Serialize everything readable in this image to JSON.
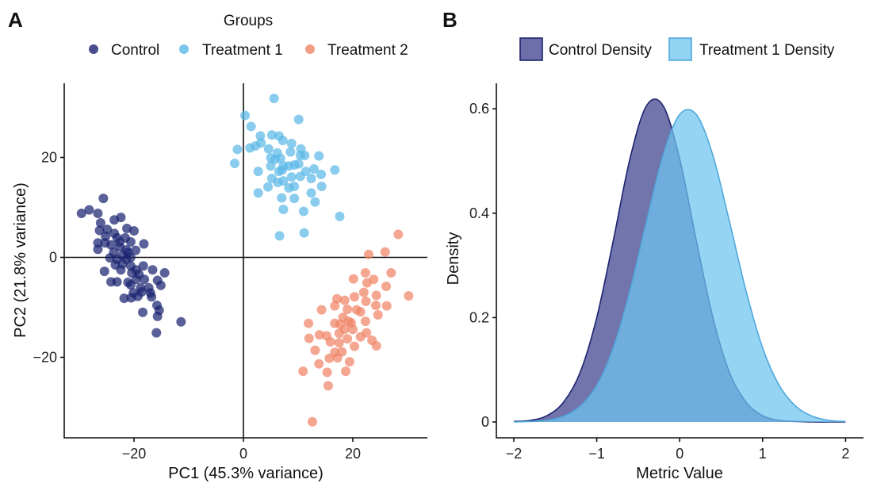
{
  "chart_data": [
    {
      "panel_label": "A",
      "type": "scatter",
      "xlabel": "PC1 (45.3% variance)",
      "ylabel": "PC2 (21.8% variance)",
      "xlim": [
        -32.8,
        33.6
      ],
      "ylim": [
        -36,
        35
      ],
      "xticks": [
        -20,
        0,
        20
      ],
      "yticks": [
        -20,
        0,
        20
      ],
      "xtick_labels": [
        "−20",
        "0",
        "20"
      ],
      "ytick_labels": [
        "−20",
        "0",
        "20"
      ],
      "reference_lines": {
        "x": 0,
        "y": 0
      },
      "grid": false,
      "legend": {
        "title": "Groups",
        "placement": "top"
      },
      "series": [
        {
          "name": "Control",
          "color": "#1b2370",
          "points": [
            [
              -25.6,
              11.8
            ],
            [
              -29.6,
              8.8
            ],
            [
              -28.2,
              9.5
            ],
            [
              -26.6,
              8.8
            ],
            [
              -26.1,
              6.9
            ],
            [
              -23.6,
              7.5
            ],
            [
              -22.4,
              8.0
            ],
            [
              -26.3,
              5.4
            ],
            [
              -24.9,
              5.6
            ],
            [
              -23.6,
              4.8
            ],
            [
              -21.3,
              5.8
            ],
            [
              -20.0,
              5.3
            ],
            [
              -25.2,
              4.2
            ],
            [
              -23.1,
              3.9
            ],
            [
              -21.6,
              3.9
            ],
            [
              -20.6,
              3.1
            ],
            [
              -26.6,
              2.9
            ],
            [
              -25.3,
              2.9
            ],
            [
              -24.2,
              2.5
            ],
            [
              -22.6,
              2.1
            ],
            [
              -21.4,
              1.5
            ],
            [
              -19.7,
              1.4
            ],
            [
              -18.2,
              2.7
            ],
            [
              -26.6,
              1.6
            ],
            [
              -23.7,
              1.0
            ],
            [
              -22.1,
              0.4
            ],
            [
              -20.6,
              0
            ],
            [
              -24.4,
              -0.1
            ],
            [
              -23.1,
              -0.4
            ],
            [
              -21.4,
              -0.4
            ],
            [
              -23.4,
              -1.5
            ],
            [
              -22.1,
              -1.3
            ],
            [
              -20.6,
              -1.7
            ],
            [
              -19.6,
              -2.5
            ],
            [
              -18.3,
              -1.7
            ],
            [
              -25.4,
              -2.8
            ],
            [
              -22.4,
              -2.5
            ],
            [
              -20.4,
              -3.1
            ],
            [
              -19.1,
              -3.4
            ],
            [
              -16.6,
              -2.5
            ],
            [
              -14.4,
              -3.1
            ],
            [
              -21.1,
              -5.0
            ],
            [
              -19.6,
              -4.4
            ],
            [
              -18.1,
              -4.4
            ],
            [
              -24.2,
              -4.9
            ],
            [
              -23.1,
              -4.9
            ],
            [
              -20.6,
              -5.5
            ],
            [
              -18.8,
              -6.1
            ],
            [
              -17.3,
              -6.1
            ],
            [
              -15.7,
              -4.6
            ],
            [
              -15.1,
              -5.6
            ],
            [
              -20.1,
              -7.1
            ],
            [
              -18.6,
              -6.9
            ],
            [
              -17.0,
              -7.1
            ],
            [
              -21.8,
              -8.2
            ],
            [
              -20.5,
              -8.1
            ],
            [
              -19.3,
              -7.8
            ],
            [
              -16.8,
              -7.9
            ],
            [
              -15.8,
              -9.6
            ],
            [
              -15.4,
              -10.6
            ],
            [
              -18.4,
              -11.0
            ],
            [
              -15.7,
              -11.8
            ],
            [
              -11.4,
              -12.9
            ],
            [
              -15.9,
              -15.1
            ],
            [
              -22.6,
              3.1
            ],
            [
              -21.1,
              1.0
            ]
          ]
        },
        {
          "name": "Treatment 1",
          "color": "#5bb8e8",
          "points": [
            [
              5.6,
              31.8
            ],
            [
              0.3,
              28.4
            ],
            [
              10.1,
              27.6
            ],
            [
              1.4,
              26.2
            ],
            [
              3.1,
              24.3
            ],
            [
              5.2,
              24.5
            ],
            [
              6.5,
              24.3
            ],
            [
              7.2,
              23.4
            ],
            [
              8.8,
              22.8
            ],
            [
              -1.1,
              21.6
            ],
            [
              1.2,
              21.9
            ],
            [
              2.2,
              22.3
            ],
            [
              3.2,
              22.9
            ],
            [
              4.6,
              21.7
            ],
            [
              10.5,
              21.7
            ],
            [
              8.6,
              21.1
            ],
            [
              6.2,
              20.9
            ],
            [
              10.4,
              20.4
            ],
            [
              11.2,
              20.4
            ],
            [
              13.8,
              20.3
            ],
            [
              -1.6,
              18.8
            ],
            [
              5.0,
              19.9
            ],
            [
              5.8,
              19.6
            ],
            [
              6.8,
              19.8
            ],
            [
              5.0,
              18.3
            ],
            [
              7.3,
              18.3
            ],
            [
              8.3,
              18.3
            ],
            [
              9.3,
              18.5
            ],
            [
              10.1,
              18.7
            ],
            [
              12.9,
              17.7
            ],
            [
              16.7,
              17.5
            ],
            [
              2.7,
              17.2
            ],
            [
              6.5,
              17.2
            ],
            [
              11.4,
              17.2
            ],
            [
              14.2,
              16.6
            ],
            [
              10.4,
              16.2
            ],
            [
              5.2,
              15.8
            ],
            [
              12.4,
              15.8
            ],
            [
              6.3,
              15.0
            ],
            [
              7.3,
              15.3
            ],
            [
              8.3,
              13.9
            ],
            [
              9.3,
              14.2
            ],
            [
              4.5,
              14.1
            ],
            [
              14.3,
              14.2
            ],
            [
              2.7,
              12.9
            ],
            [
              12.4,
              12.9
            ],
            [
              9.3,
              11.8
            ],
            [
              7.0,
              11.9
            ],
            [
              13.1,
              11.1
            ],
            [
              7.3,
              9.6
            ],
            [
              11.0,
              9.2
            ],
            [
              17.6,
              8.2
            ],
            [
              6.6,
              4.3
            ],
            [
              11.1,
              4.9
            ],
            [
              7.1,
              17.5
            ],
            [
              8.8,
              16.1
            ]
          ]
        },
        {
          "name": "Treatment 2",
          "color": "#f08466",
          "points": [
            [
              28.3,
              4.6
            ],
            [
              22.9,
              0.6
            ],
            [
              25.9,
              1.1
            ],
            [
              22.3,
              -3.1
            ],
            [
              27.0,
              -3.1
            ],
            [
              23.8,
              -4.4
            ],
            [
              20.1,
              -4.3
            ],
            [
              22.6,
              -5.1
            ],
            [
              26.1,
              -5.8
            ],
            [
              30.2,
              -7.7
            ],
            [
              24.3,
              -7.6
            ],
            [
              20.3,
              -7.9
            ],
            [
              22.0,
              -7.0
            ],
            [
              17.1,
              -8.3
            ],
            [
              18.5,
              -8.6
            ],
            [
              22.4,
              -8.8
            ],
            [
              24.2,
              -9.6
            ],
            [
              26.2,
              -9.7
            ],
            [
              16.7,
              -9.7
            ],
            [
              14.3,
              -10.5
            ],
            [
              19.0,
              -10.4
            ],
            [
              20.7,
              -10.5
            ],
            [
              21.4,
              -10.9
            ],
            [
              24.6,
              -11.5
            ],
            [
              18.2,
              -12.0
            ],
            [
              16.7,
              -13.2
            ],
            [
              17.7,
              -13.4
            ],
            [
              19.7,
              -13.1
            ],
            [
              22.3,
              -12.8
            ],
            [
              11.9,
              -13.2
            ],
            [
              18.5,
              -14.4
            ],
            [
              20.0,
              -14.4
            ],
            [
              22.5,
              -15.1
            ],
            [
              13.9,
              -15.5
            ],
            [
              15.2,
              -15.7
            ],
            [
              21.4,
              -15.9
            ],
            [
              23.5,
              -16.6
            ],
            [
              12.0,
              -16.2
            ],
            [
              15.9,
              -16.9
            ],
            [
              17.5,
              -17.1
            ],
            [
              19.0,
              -16.3
            ],
            [
              20.3,
              -17.8
            ],
            [
              24.3,
              -17.7
            ],
            [
              13.1,
              -18.6
            ],
            [
              16.7,
              -19.0
            ],
            [
              18.0,
              -18.9
            ],
            [
              15.7,
              -20.2
            ],
            [
              17.2,
              -20.1
            ],
            [
              19.4,
              -20.9
            ],
            [
              13.8,
              -21.3
            ],
            [
              10.9,
              -22.8
            ],
            [
              15.3,
              -23.0
            ],
            [
              18.7,
              -22.8
            ],
            [
              15.5,
              -25.7
            ],
            [
              12.6,
              -32.9
            ],
            [
              17.5,
              -15.2
            ],
            [
              19.2,
              -12.8
            ]
          ]
        }
      ]
    },
    {
      "panel_label": "B",
      "type": "area",
      "xlabel": "Metric Value",
      "ylabel": "Density",
      "xlim": [
        -2.2,
        2.2
      ],
      "ylim": [
        -0.03,
        0.65
      ],
      "xticks": [
        -2,
        -1,
        0,
        1,
        2
      ],
      "yticks": [
        0,
        0.2,
        0.4,
        0.6
      ],
      "xtick_labels": [
        "−2",
        "−1",
        "0",
        "1",
        "2"
      ],
      "ytick_labels": [
        "0",
        "0.2",
        "0.4",
        "0.6"
      ],
      "grid": false,
      "legend": {
        "placement": "top"
      },
      "x": [
        -2,
        -1.8,
        -1.6,
        -1.4,
        -1.2,
        -1,
        -0.8,
        -0.6,
        -0.4,
        -0.2,
        0,
        0.2,
        0.4,
        0.6,
        0.8,
        1,
        1.2,
        1.4,
        1.6,
        1.8,
        2
      ],
      "series": [
        {
          "name": "Control Density",
          "fill": "#3b3f8c",
          "stroke": "#1b2370",
          "values": [
            0.001,
            0.003,
            0.012,
            0.038,
            0.095,
            0.2,
            0.348,
            0.504,
            0.606,
            0.606,
            0.504,
            0.348,
            0.2,
            0.095,
            0.038,
            0.012,
            0.003,
            0.001,
            0,
            0,
            0
          ]
        },
        {
          "name": "Treatment 1 Density",
          "fill": "#6ec3ef",
          "stroke": "#4fa8dd",
          "values": [
            0,
            0.001,
            0.003,
            0.011,
            0.03,
            0.07,
            0.142,
            0.251,
            0.384,
            0.511,
            0.589,
            0.589,
            0.511,
            0.384,
            0.251,
            0.142,
            0.07,
            0.03,
            0.011,
            0.003,
            0.001
          ]
        }
      ]
    }
  ]
}
